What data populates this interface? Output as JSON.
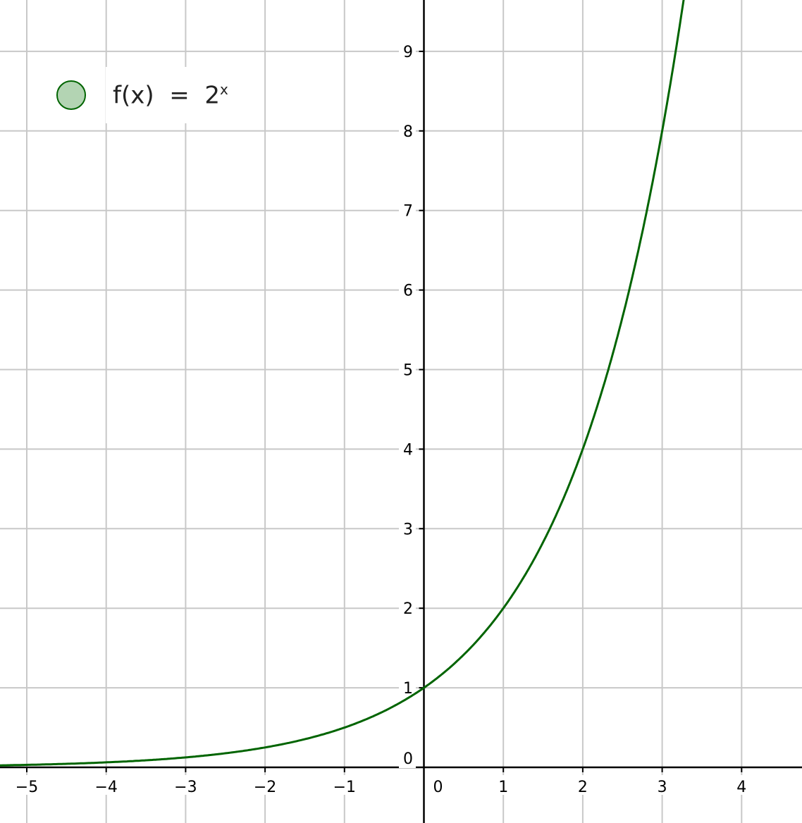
{
  "chart_data": {
    "type": "line",
    "title": "",
    "xlabel": "",
    "ylabel": "",
    "xlim": [
      -5.33,
      4.8
    ],
    "ylim": [
      -0.7,
      9.65
    ],
    "grid": true,
    "x_ticks": [
      -5,
      -4,
      -3,
      -2,
      -1,
      0,
      1,
      2,
      3,
      4
    ],
    "x_tick_labels": [
      "−5",
      "−4",
      "−3",
      "−2",
      "−1",
      "0",
      "1",
      "2",
      "3",
      "4"
    ],
    "y_ticks": [
      0,
      1,
      2,
      3,
      4,
      5,
      6,
      7,
      8,
      9
    ],
    "y_tick_labels": [
      "0",
      "1",
      "2",
      "3",
      "4",
      "5",
      "6",
      "7",
      "8",
      "9"
    ],
    "series": [
      {
        "function": "2^x",
        "color": "#006400",
        "x": [
          -5,
          -4,
          -3,
          -2,
          -1,
          0,
          1,
          2,
          3
        ],
        "y": [
          0.03125,
          0.0625,
          0.125,
          0.25,
          0.5,
          1,
          2,
          4,
          8
        ]
      }
    ],
    "legend": {
      "placement": "top-left",
      "fn_name": "f",
      "arg": "x",
      "base": "2",
      "exponent": "x",
      "dot_color": "#b3d4b3"
    }
  }
}
